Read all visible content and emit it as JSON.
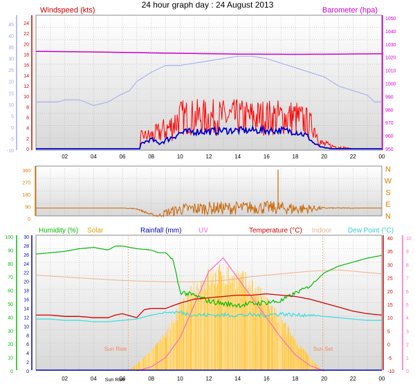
{
  "title": "24 hour graph day : 24 August 2013",
  "chart_data": [
    {
      "type": "line",
      "panel": "wind_baro",
      "x_ticks": [
        "02",
        "04",
        "06",
        "08",
        "10",
        "12",
        "14",
        "16",
        "18",
        "20",
        "22",
        "00"
      ],
      "axes": {
        "left_outer": {
          "ticks": [
            -10,
            -5,
            0,
            5,
            10,
            15,
            20,
            25,
            30,
            35,
            40,
            45
          ],
          "color": "#9fa8e8"
        },
        "left_inner": {
          "ticks": [
            0,
            2,
            4,
            6,
            8,
            10,
            12,
            14,
            16,
            18,
            20,
            22,
            24
          ],
          "label": "Windspeed (kts)",
          "color": "#cc0000",
          "ylim": [
            0,
            25
          ]
        },
        "right": {
          "ticks": [
            950,
            960,
            970,
            980,
            990,
            1000,
            1010,
            1020,
            1030,
            1040,
            1050
          ],
          "label": "Barometer (hpa)",
          "color": "#cc00cc",
          "ylim": [
            948,
            1052
          ]
        }
      },
      "grid": true,
      "series": [
        {
          "name": "Barometer (hpa)",
          "color": "#cc00cc",
          "axis": "right",
          "x": [
            0,
            2,
            4,
            6,
            8,
            10,
            12,
            14,
            16,
            18,
            20,
            22,
            24
          ],
          "values": [
            1024.5,
            1024.3,
            1024,
            1023.7,
            1023.3,
            1023,
            1022.7,
            1022.4,
            1022.3,
            1022.2,
            1022.3,
            1022.5,
            1022.6
          ]
        },
        {
          "color": "#aab2f0",
          "axis": "left_outer",
          "x": [
            0,
            1.5,
            2,
            3,
            4,
            5,
            5.8,
            6.5,
            7,
            8,
            9,
            10,
            11,
            12,
            13,
            14,
            15,
            16,
            17,
            18,
            19,
            20,
            21,
            22,
            23,
            23.5,
            24
          ],
          "values": [
            11,
            11,
            12,
            12,
            9.5,
            11,
            14,
            16,
            20,
            24,
            27,
            27,
            28,
            29,
            30,
            31,
            31,
            30,
            28,
            26,
            24,
            22,
            18,
            16,
            14,
            11,
            11
          ]
        },
        {
          "color": "#ff0000",
          "axis": "left_inner",
          "x": [
            0,
            7.2,
            7.3,
            8,
            8.5,
            9.3,
            10,
            11,
            12,
            13,
            14,
            15,
            16,
            17,
            18,
            18.8,
            19.3,
            19.8,
            20.5,
            22,
            24
          ],
          "values": [
            0,
            0,
            2.5,
            2.5,
            3,
            4,
            6,
            6,
            6,
            6,
            6,
            6,
            6,
            6,
            6,
            5,
            4,
            1,
            0.5,
            0,
            0
          ],
          "noise": [
            0,
            0,
            1,
            1.5,
            2,
            3,
            3.5,
            3.5,
            3.5,
            3.5,
            3.5,
            3.5,
            3.5,
            3.5,
            3.5,
            3,
            2,
            1,
            0.5,
            0,
            0
          ]
        },
        {
          "color": "#0000cc",
          "axis": "left_inner",
          "x": [
            0,
            7.2,
            7.3,
            8,
            8.5,
            9.3,
            10,
            11,
            12,
            13,
            14,
            15,
            16,
            17,
            18,
            18.8,
            19.3,
            19.8,
            20.5,
            22,
            24
          ],
          "values": [
            0,
            0,
            1,
            1.8,
            1,
            2,
            3,
            3.3,
            3.3,
            3.5,
            3.5,
            3.5,
            3.5,
            3.5,
            3.3,
            2.5,
            1,
            0.3,
            0,
            0,
            0
          ],
          "noise": [
            0,
            0,
            0.3,
            0.4,
            0.4,
            0.6,
            0.7,
            0.7,
            0.7,
            0.7,
            0.7,
            0.7,
            0.7,
            0.7,
            0.7,
            0.6,
            0.3,
            0.1,
            0,
            0,
            0
          ]
        }
      ]
    },
    {
      "type": "line",
      "panel": "wind_dir",
      "axes": {
        "left": {
          "ticks": [
            0,
            90,
            180,
            270,
            360
          ],
          "ylim": [
            0,
            360
          ],
          "color": "#e07b00"
        },
        "right": {
          "labels": [
            "N",
            "W",
            "S",
            "E",
            "N"
          ],
          "color": "#e07b00"
        }
      },
      "grid": true,
      "series": [
        {
          "color": "#c86400",
          "x": [
            0,
            6,
            7,
            8,
            8.5,
            9,
            10,
            11,
            12,
            13,
            14,
            15,
            16,
            17,
            18,
            19,
            20,
            24
          ],
          "values": [
            65,
            65,
            60,
            15,
            5,
            30,
            55,
            60,
            65,
            65,
            65,
            70,
            70,
            65,
            60,
            60,
            65,
            65
          ],
          "noise": [
            0,
            0,
            5,
            10,
            10,
            30,
            45,
            50,
            50,
            50,
            50,
            50,
            50,
            50,
            45,
            35,
            5,
            0
          ],
          "spike": {
            "x": 16.8,
            "value": 360
          }
        }
      ]
    },
    {
      "type": "line",
      "panel": "temp_hum",
      "x_ticks": [
        "02",
        "04",
        "06",
        "08",
        "10",
        "12",
        "14",
        "16",
        "18",
        "20",
        "22",
        "00"
      ],
      "sun": {
        "rise_label": "Sun Rise",
        "rise_x": 6.4,
        "set_label": "Sun Set",
        "set_x": 19.9,
        "bottom_label": "Sun Rise"
      },
      "axes": {
        "left_outer": {
          "ticks": [
            0,
            10,
            20,
            30,
            40,
            50,
            60,
            70,
            80,
            90,
            100
          ],
          "label": "Humidity (%)",
          "color": "#00bb00"
        },
        "left_inner": {
          "ticks": [
            0,
            2,
            4,
            6,
            8,
            10,
            12,
            14,
            16,
            18,
            20,
            22,
            24,
            26,
            28,
            30
          ],
          "label": "Rainfall (mm)",
          "color": "#0000aa"
        },
        "right_inner": {
          "ticks": [
            -10,
            -5,
            0,
            5,
            10,
            15,
            20,
            25,
            30,
            35,
            40
          ],
          "label": "Temperature (°C)",
          "color": "#cc0000",
          "ylim": [
            -10,
            40
          ]
        },
        "right_outer": {
          "ticks": [
            0,
            1,
            2,
            3,
            4,
            5,
            6,
            7,
            8,
            9,
            10
          ],
          "label": "UV",
          "color": "#ff66cc",
          "ylim": [
            0,
            10
          ]
        }
      },
      "legend_extra": [
        "Solar",
        "Indoor",
        "Dew Point (°C)"
      ],
      "grid": true,
      "series": [
        {
          "name": "Humidity (%)",
          "color": "#00bb00",
          "axis": "left_outer",
          "x": [
            0,
            2,
            3,
            4,
            5,
            5.5,
            6,
            7,
            8,
            8.5,
            9,
            9.5,
            10,
            11,
            12,
            13,
            14,
            15,
            16,
            17,
            18,
            19,
            20,
            21,
            22,
            23,
            24
          ],
          "values": [
            87,
            89,
            91,
            92,
            90,
            93,
            93,
            91,
            90,
            88,
            88,
            83,
            59,
            56,
            52,
            50,
            49,
            50,
            51,
            52,
            58,
            63,
            73,
            78,
            81,
            84,
            86
          ],
          "noise": [
            0,
            0,
            0,
            0,
            0,
            0,
            0,
            0,
            0,
            0,
            0,
            1,
            2,
            2,
            2,
            2,
            2,
            2,
            2,
            2,
            1.5,
            1,
            0,
            0,
            0,
            0,
            0
          ]
        },
        {
          "name": "Indoor",
          "color": "#f0b090",
          "axis": "right_inner",
          "x": [
            0,
            3,
            6,
            9,
            11,
            13,
            15,
            17,
            19,
            21,
            24
          ],
          "values": [
            26,
            25,
            24,
            23.5,
            23.5,
            24,
            25.5,
            26.5,
            27.5,
            28,
            26.5
          ]
        },
        {
          "name": "Temperature (°C)",
          "color": "#cc0000",
          "axis": "right_inner",
          "x": [
            0,
            1,
            2,
            3,
            4,
            5,
            5.5,
            6,
            7,
            7.5,
            8,
            9,
            10,
            11,
            12,
            13,
            14,
            15,
            16,
            17,
            18,
            19,
            20,
            21,
            22,
            23,
            24
          ],
          "values": [
            11,
            11,
            10.5,
            10.5,
            10,
            10,
            11,
            11.5,
            10,
            13,
            13.5,
            13.5,
            15.5,
            17,
            17.5,
            18,
            18.5,
            18.5,
            19,
            18.5,
            18,
            17,
            15.5,
            14,
            12.5,
            11.5,
            11
          ]
        },
        {
          "name": "Dew Point (°C)",
          "color": "#33dddd",
          "axis": "right_inner",
          "x": [
            0,
            1,
            2,
            3,
            4,
            5,
            6,
            7,
            8,
            9,
            10,
            11,
            12,
            13,
            14,
            15,
            16,
            17,
            18,
            19,
            20,
            21,
            22,
            23,
            24
          ],
          "values": [
            9.5,
            9.5,
            9,
            9,
            8.5,
            8.5,
            9,
            9.5,
            11,
            12,
            12,
            11,
            11,
            11,
            11,
            11,
            11,
            11.5,
            11,
            11,
            10.5,
            10,
            9.5,
            9,
            9
          ],
          "noise": [
            0,
            0,
            0,
            0,
            0,
            0,
            0,
            0,
            0,
            0.3,
            0.8,
            0.8,
            0.8,
            0.8,
            0.8,
            0.8,
            0.8,
            0.8,
            0.7,
            0.5,
            0,
            0,
            0,
            0,
            0
          ]
        },
        {
          "name": "Rainfall (mm)",
          "color": "#0000aa",
          "axis": "left_inner",
          "x": [
            0,
            24
          ],
          "values": [
            0,
            0
          ]
        },
        {
          "name": "Solar",
          "color": "#ffcc44",
          "axis": "right_outer",
          "kind": "area",
          "x": [
            6.4,
            7,
            8,
            9,
            10,
            11,
            12,
            13,
            14,
            15,
            16,
            17,
            18,
            19,
            19.9
          ],
          "values": [
            0,
            0.5,
            1.5,
            3,
            5,
            6.5,
            7.5,
            7.8,
            7.5,
            6.8,
            5.5,
            4,
            2.5,
            1,
            0
          ]
        },
        {
          "name": "UV",
          "color": "#ff66cc",
          "axis": "right_outer",
          "x": [
            7,
            8,
            9,
            10,
            11,
            12,
            13,
            14,
            15,
            16,
            17,
            18,
            19,
            20
          ],
          "values": [
            0,
            0.3,
            1,
            2.5,
            5,
            7.5,
            8.5,
            7,
            5.5,
            4,
            2.5,
            1.2,
            0.4,
            0
          ]
        }
      ]
    }
  ]
}
